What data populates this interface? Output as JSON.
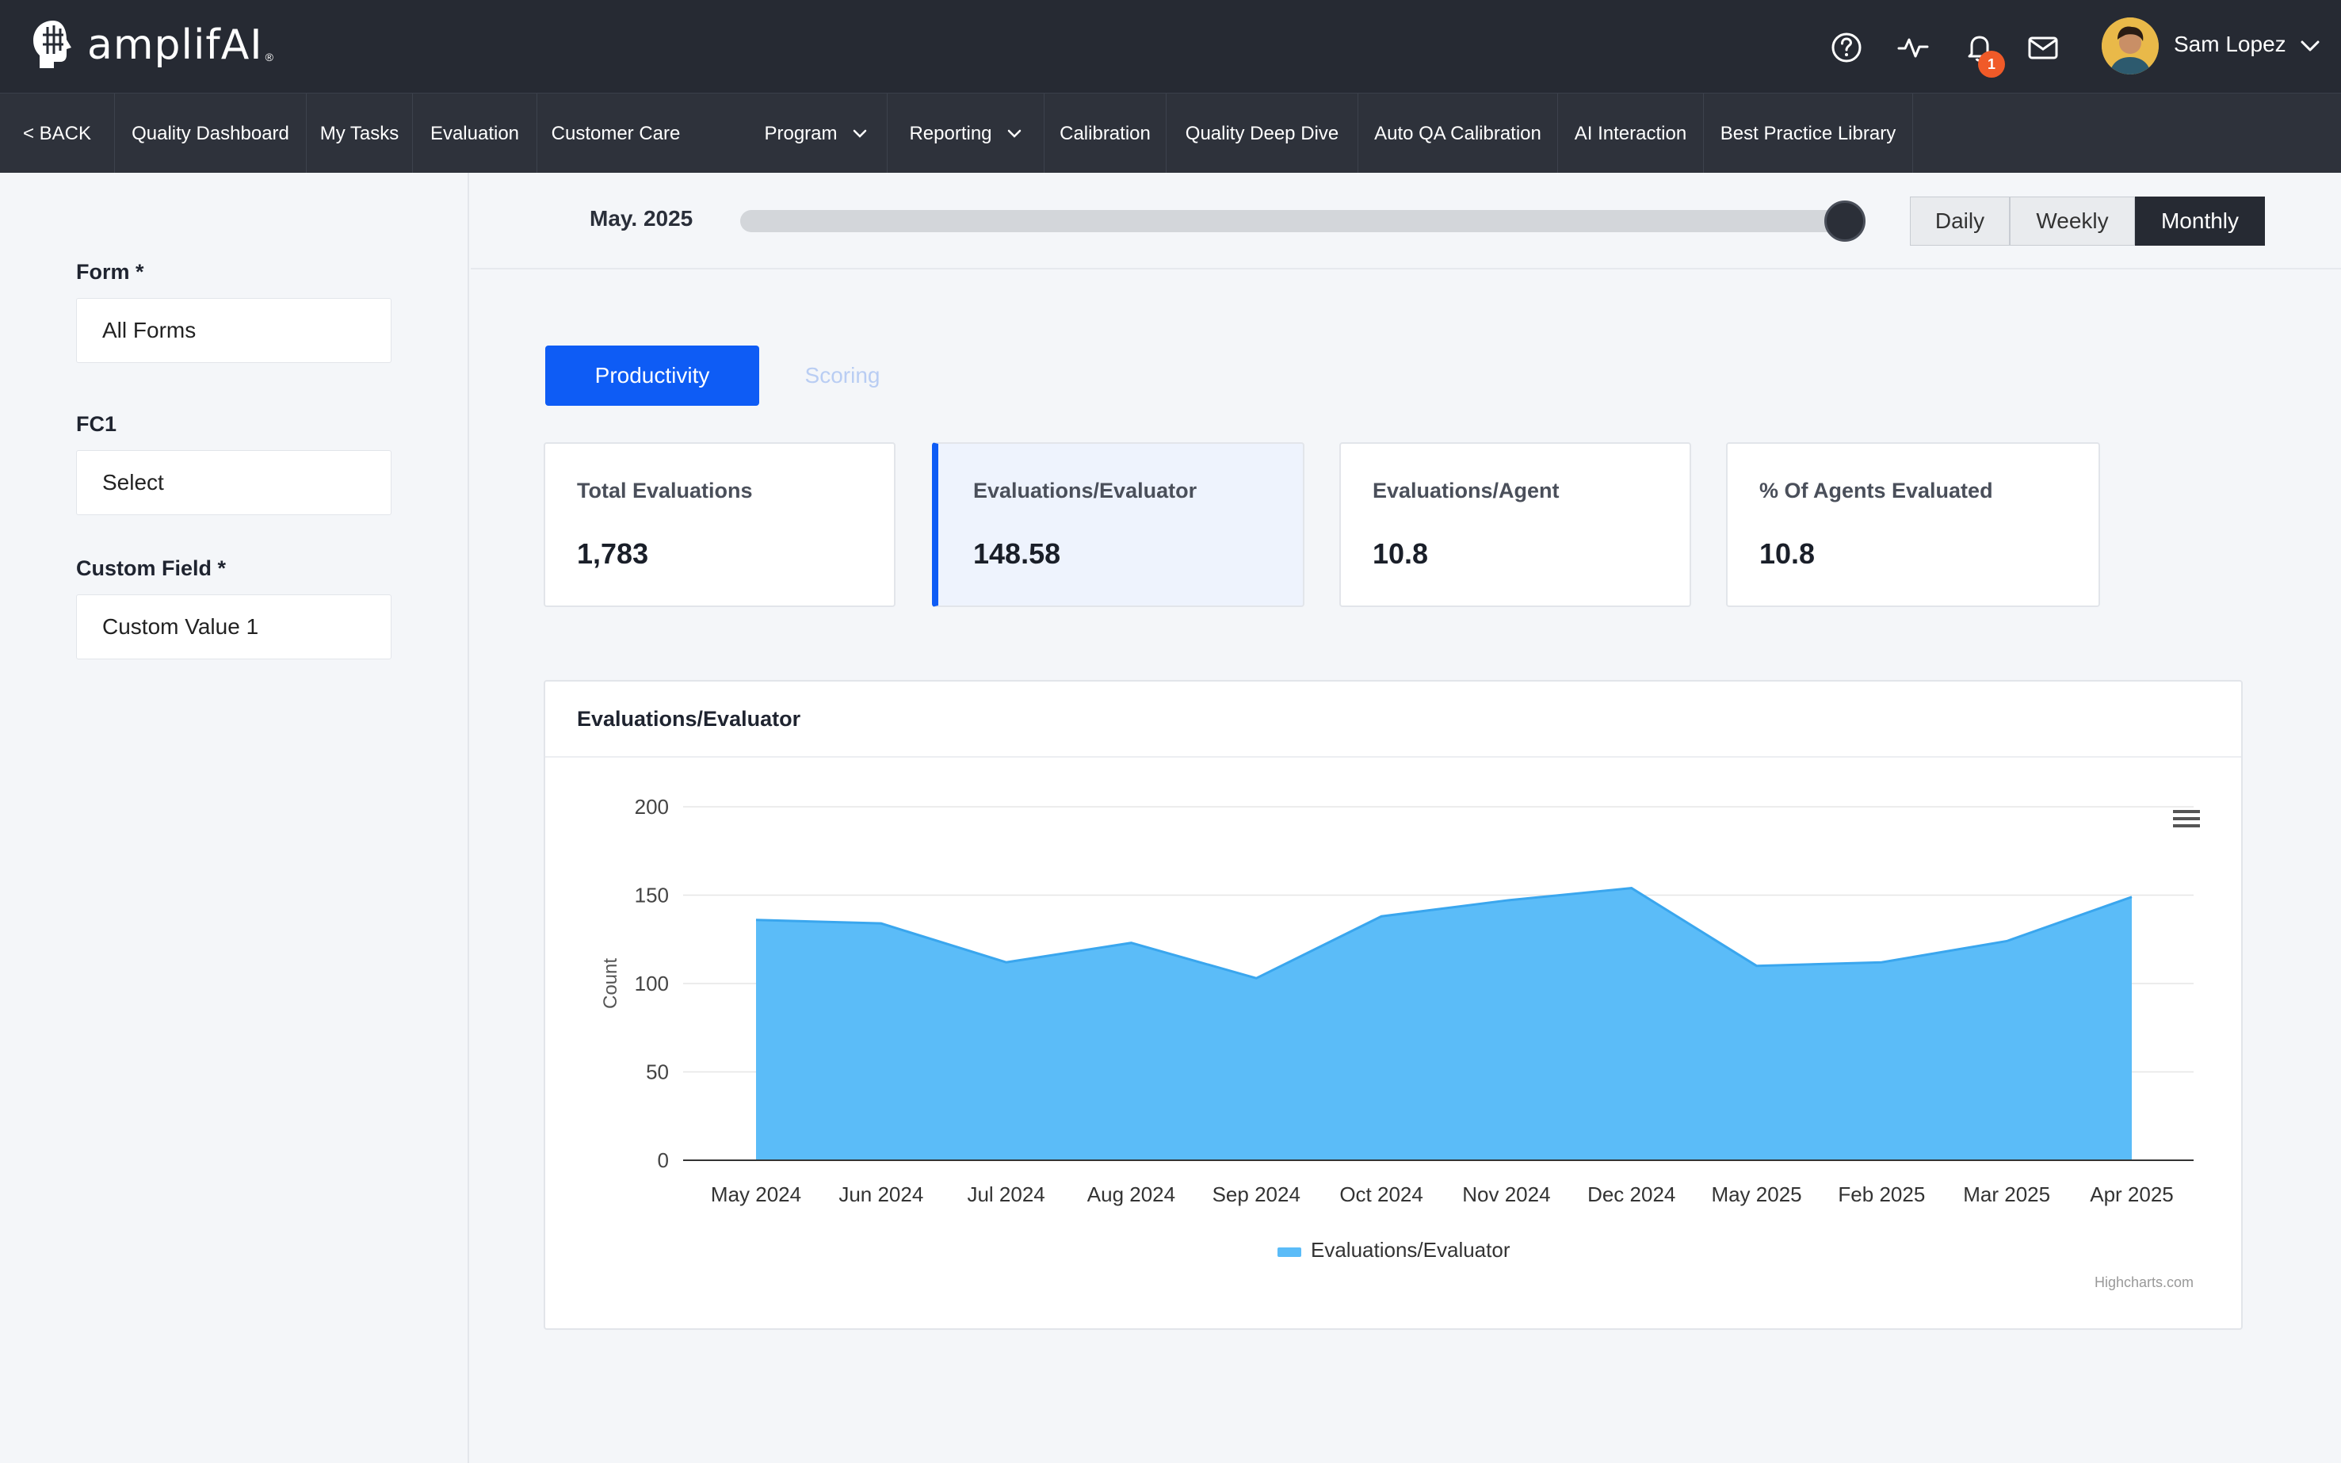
{
  "app": {
    "logo_text": "amplifAI",
    "logo_reg": "®"
  },
  "header": {
    "notification_count": "1",
    "user_name": "Sam Lopez",
    "icons": [
      "help-icon",
      "activity-icon",
      "bell-icon",
      "mail-icon",
      "chevron-down-icon"
    ]
  },
  "nav": {
    "back": "< BACK",
    "items": [
      {
        "label": "Quality Dashboard"
      },
      {
        "label": "My Tasks"
      },
      {
        "label": "Evaluation"
      },
      {
        "label": "Customer Care"
      },
      {
        "label": "Program"
      },
      {
        "label": "Reporting"
      },
      {
        "label": "Calibration"
      },
      {
        "label": "Quality Deep Dive"
      },
      {
        "label": "Auto QA Calibration"
      },
      {
        "label": "AI Interaction"
      },
      {
        "label": "Best Practice Library"
      }
    ]
  },
  "filters": {
    "form_label": "Form *",
    "form_value": "All Forms",
    "fc1_label": "FC1",
    "fc1_value": "Select",
    "custom_label": "Custom Field *",
    "custom_value": "Custom Value 1"
  },
  "period": {
    "date_label": "May. 2025",
    "slider_position": 1.0,
    "options": [
      "Daily",
      "Weekly",
      "Monthly"
    ],
    "selected": "Monthly"
  },
  "tabs": {
    "productivity": "Productivity",
    "scoring": "Scoring",
    "active": "Productivity"
  },
  "kpis": [
    {
      "label": "Total Evaluations",
      "value": "1,783"
    },
    {
      "label": "Evaluations/Evaluator",
      "value": "148.58"
    },
    {
      "label": "Evaluations/Agent",
      "value": "10.8"
    },
    {
      "label": "% Of Agents Evaluated",
      "value": "10.8"
    }
  ],
  "chart_card": {
    "title": "Evaluations/Evaluator",
    "credit": "Highcharts.com"
  },
  "colors": {
    "topbar": "#262a33",
    "accent": "#0e5cf5",
    "series_fill": "#5bbcf8",
    "series_line": "#3aa6ee"
  },
  "chart_data": {
    "type": "area",
    "categories": [
      "May 2024",
      "Jun 2024",
      "Jul 2024",
      "Aug 2024",
      "Sep 2024",
      "Oct 2024",
      "Nov 2024",
      "Dec 2024",
      "May 2025",
      "Feb 2025",
      "Mar 2025",
      "Apr 2025"
    ],
    "series": [
      {
        "name": "Evaluations/Evaluator",
        "values": [
          136,
          134,
          112,
          123,
          103,
          138,
          147,
          154,
          110,
          112,
          124,
          149
        ]
      }
    ],
    "ylabel": "Count",
    "ylim": [
      0,
      200
    ],
    "yticks": [
      0,
      50,
      100,
      150,
      200
    ],
    "grid": true,
    "legend": "bottom-center"
  }
}
